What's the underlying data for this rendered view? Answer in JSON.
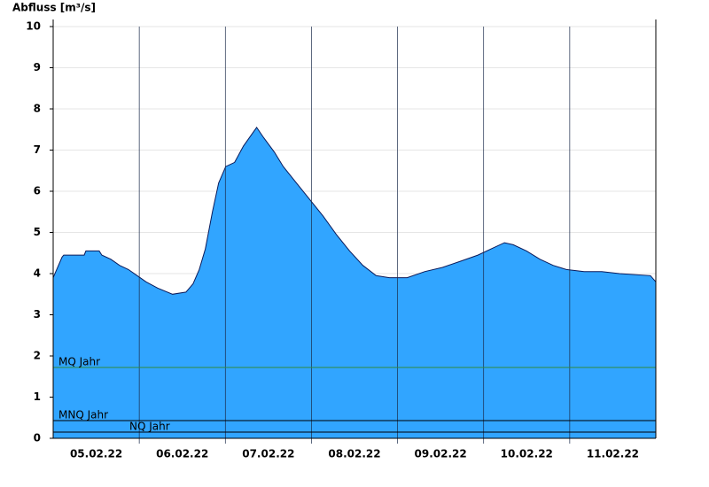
{
  "chart_data": {
    "type": "area",
    "y_label": "Abfluss [m³/s]",
    "x": [
      0,
      0.103,
      0.123,
      0.36,
      0.38,
      0.534,
      0.565,
      0.668,
      0.771,
      0.874,
      0.976,
      1.079,
      1.213,
      1.387,
      1.542,
      1.624,
      1.696,
      1.768,
      1.85,
      1.922,
      2.004,
      2.107,
      2.21,
      2.312,
      2.364,
      2.446,
      2.569,
      2.672,
      2.826,
      2.98,
      3.135,
      3.289,
      3.443,
      3.597,
      3.751,
      3.905,
      4.111,
      4.317,
      4.522,
      4.728,
      4.933,
      5.087,
      5.242,
      5.344,
      5.498,
      5.653,
      5.807,
      5.961,
      6.167,
      6.372,
      6.578,
      6.937,
      7
    ],
    "series": [
      {
        "name": "Abfluss",
        "color": "#31a5ff",
        "values": [
          3.9,
          4.4,
          4.45,
          4.45,
          4.55,
          4.55,
          4.45,
          4.35,
          4.2,
          4.1,
          3.95,
          3.8,
          3.65,
          3.5,
          3.55,
          3.75,
          4.1,
          4.6,
          5.5,
          6.2,
          6.6,
          6.7,
          7.1,
          7.4,
          7.55,
          7.3,
          6.95,
          6.6,
          6.2,
          5.8,
          5.4,
          4.95,
          4.55,
          4.2,
          3.95,
          3.9,
          3.9,
          4.05,
          4.15,
          4.3,
          4.45,
          4.6,
          4.75,
          4.7,
          4.55,
          4.35,
          4.2,
          4.1,
          4.05,
          4.05,
          4.0,
          3.95,
          3.8
        ]
      }
    ],
    "reference_lines": [
      {
        "label": "MQ Jahr",
        "value": 1.72
      },
      {
        "label": "MNQ Jahr",
        "value": 0.43
      },
      {
        "label": "NQ Jahr",
        "value": 0.15
      }
    ],
    "xlim": [
      0,
      7
    ],
    "xticks": [
      {
        "value": 0.5,
        "label": "05.02.22"
      },
      {
        "value": 1.5,
        "label": "06.02.22"
      },
      {
        "value": 2.5,
        "label": "07.02.22"
      },
      {
        "value": 3.5,
        "label": "08.02.22"
      },
      {
        "value": 4.5,
        "label": "09.02.22"
      },
      {
        "value": 5.5,
        "label": "10.02.22"
      },
      {
        "value": 6.5,
        "label": "11.02.22"
      }
    ],
    "xgrid": [
      1,
      2,
      3,
      4,
      5,
      6
    ],
    "ylim": [
      0,
      10
    ],
    "yticks": [
      0,
      1,
      2,
      3,
      4,
      5,
      6,
      7,
      8,
      9,
      10
    ],
    "grid": true
  }
}
